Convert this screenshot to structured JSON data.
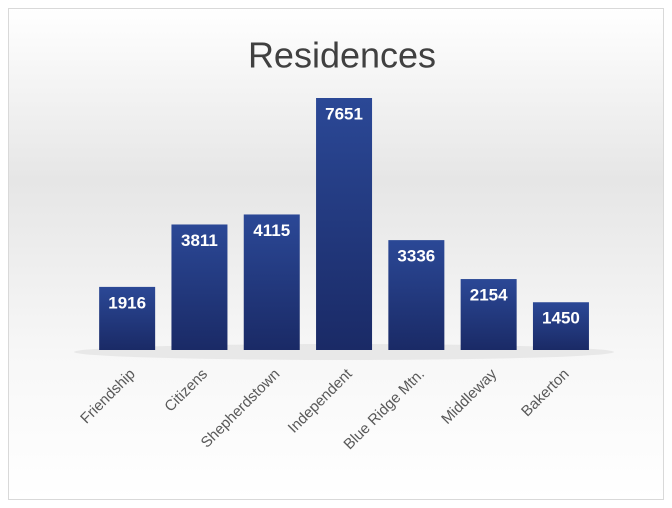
{
  "chart_data": {
    "type": "bar",
    "title": "Residences",
    "categories": [
      "Friendship",
      "Citizens",
      "Shepherdstown",
      "Independent",
      "Blue Ridge Mtn.",
      "Middleway",
      "Bakerton"
    ],
    "values": [
      1916,
      3811,
      4115,
      7651,
      3336,
      2154,
      1450
    ],
    "color": "#1f3278"
  }
}
